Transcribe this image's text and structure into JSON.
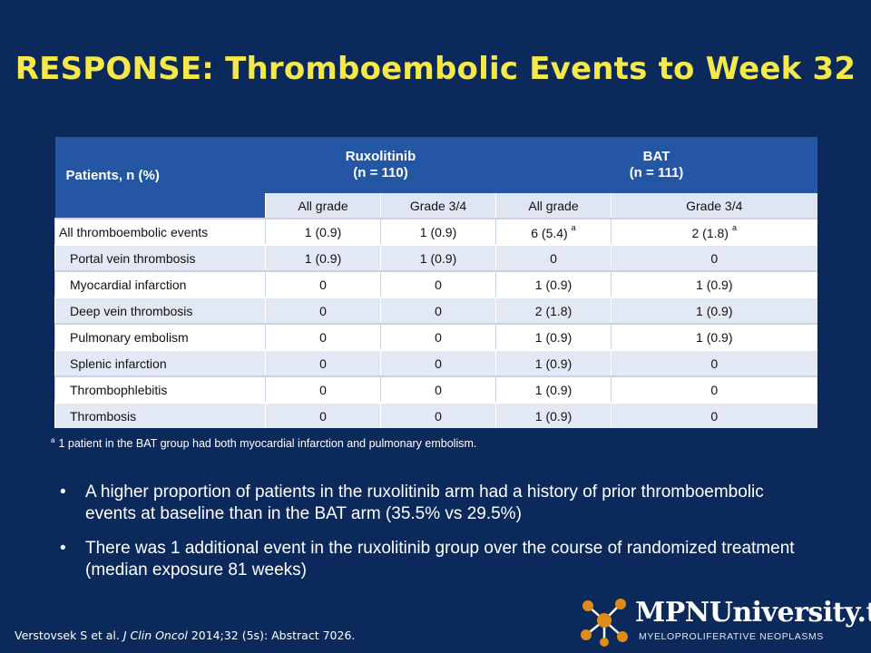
{
  "title": "RESPONSE: Thromboembolic Events to Week 32",
  "table": {
    "corner_label": "Patients, n (%)",
    "groups": [
      {
        "name": "Ruxolitinib",
        "n": "(n = 110)"
      },
      {
        "name": "BAT",
        "n": "(n = 111)"
      }
    ],
    "subheaders": [
      "All grade",
      "Grade 3/4",
      "All grade",
      "Grade 3/4"
    ],
    "rows": [
      {
        "label": "All thromboembolic events",
        "cells": [
          "1 (0.9)",
          "1 (0.9)",
          "6 (5.4)",
          "2 (1.8)"
        ],
        "sup": [
          "",
          "",
          "a",
          "a"
        ]
      },
      {
        "label": "Portal vein thrombosis",
        "cells": [
          "1 (0.9)",
          "1 (0.9)",
          "0",
          "0"
        ]
      },
      {
        "label": "Myocardial infarction",
        "cells": [
          "0",
          "0",
          "1 (0.9)",
          "1 (0.9)"
        ]
      },
      {
        "label": "Deep vein thrombosis",
        "cells": [
          "0",
          "0",
          "2 (1.8)",
          "1 (0.9)"
        ]
      },
      {
        "label": "Pulmonary embolism",
        "cells": [
          "0",
          "0",
          "1 (0.9)",
          "1 (0.9)"
        ]
      },
      {
        "label": "Splenic infarction",
        "cells": [
          "0",
          "0",
          "1 (0.9)",
          "0"
        ]
      },
      {
        "label": "Thrombophlebitis",
        "cells": [
          "0",
          "0",
          "1 (0.9)",
          "0"
        ]
      },
      {
        "label": "Thrombosis",
        "cells": [
          "0",
          "0",
          "1 (0.9)",
          "0"
        ]
      }
    ]
  },
  "footnote": {
    "marker": "a",
    "text": "1 patient in the BAT group had both myocardial infarction and pulmonary embolism."
  },
  "bullets": [
    "A higher proportion of patients in the ruxolitinib arm had a history of prior thromboembolic events at baseline than in the BAT arm (35.5% vs 29.5%)",
    "There was 1 additional event in the ruxolitinib group over the course of randomized treatment (median exposure 81 weeks)"
  ],
  "citation": {
    "authors": "Verstovsek S et al.",
    "journal": "J Clin Oncol",
    "rest": "2014;32 (5s): Abstract 7026."
  },
  "logo": {
    "name": "MPNUniversity.tv",
    "tagline": "MYELOPROLIFERATIVE NEOPLASMS"
  },
  "colors": {
    "background": "#0b2a5b",
    "title": "#f5e84a",
    "table_header": "#2456a4",
    "row_alt": "#e3e9f4"
  }
}
